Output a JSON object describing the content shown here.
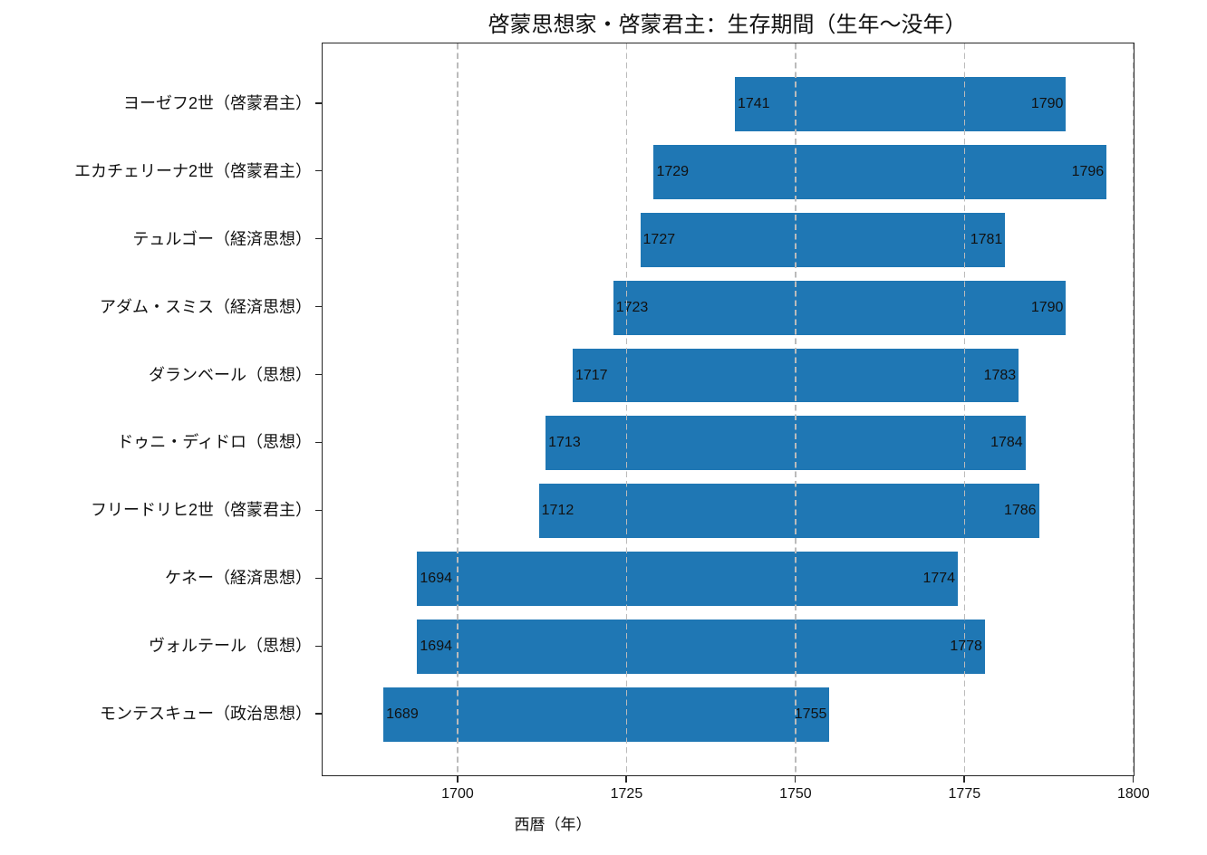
{
  "chart_data": {
    "type": "bar",
    "orientation": "horizontal",
    "title": "啓蒙思想家・啓蒙君主：生存期間（生年〜没年）",
    "xlabel": "西暦（年）",
    "xlim": [
      1680,
      1800
    ],
    "x_ticks": [
      1700,
      1725,
      1750,
      1775,
      1800
    ],
    "grid": {
      "axis": "x",
      "style": "dashed",
      "color": "#bbbbbb"
    },
    "bar_color": "#1f77b4",
    "legend": "none",
    "people": [
      {
        "label": "ヨーゼフ2世（啓蒙君主）",
        "birth": 1741,
        "death": 1790
      },
      {
        "label": "エカチェリーナ2世（啓蒙君主）",
        "birth": 1729,
        "death": 1796
      },
      {
        "label": "テュルゴー（経済思想）",
        "birth": 1727,
        "death": 1781
      },
      {
        "label": "アダム・スミス（経済思想）",
        "birth": 1723,
        "death": 1790
      },
      {
        "label": "ダランベール（思想）",
        "birth": 1717,
        "death": 1783
      },
      {
        "label": "ドゥニ・ディドロ（思想）",
        "birth": 1713,
        "death": 1784
      },
      {
        "label": "フリードリヒ2世（啓蒙君主）",
        "birth": 1712,
        "death": 1786
      },
      {
        "label": "ケネー（経済思想）",
        "birth": 1694,
        "death": 1774
      },
      {
        "label": "ヴォルテール（思想）",
        "birth": 1694,
        "death": 1778
      },
      {
        "label": "モンテスキュー（政治思想）",
        "birth": 1689,
        "death": 1755
      }
    ]
  }
}
